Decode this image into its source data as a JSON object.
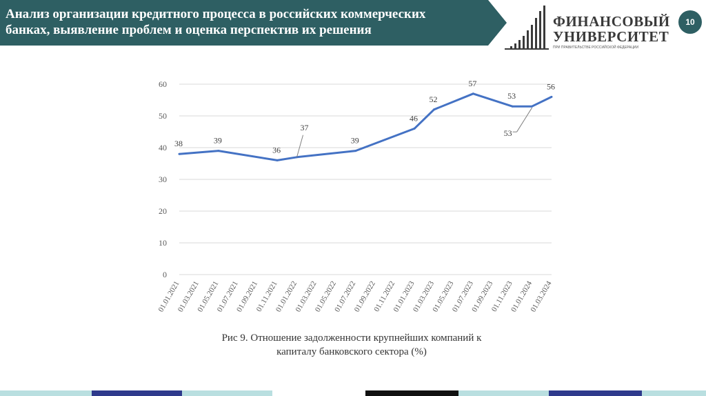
{
  "header": {
    "title_line1": "Анализ организации кредитного процесса в российских коммерческих",
    "title_line2": "банках, выявление проблем и оценка перспектив их решения",
    "page_number": "10"
  },
  "logo": {
    "line1": "ФИНАНСОВЫЙ",
    "line2": "УНИВЕРСИТЕТ",
    "subtitle": "ПРИ ПРАВИТЕЛЬСТВЕ РОССИЙСКОЙ ФЕДЕРАЦИИ"
  },
  "caption": {
    "line1": "Рис 9. Отношение задолженности крупнейших компаний к",
    "line2": "капиталу банковского сектора (%)"
  },
  "colors": {
    "header_band": "#2e5f63",
    "series_line": "#4472c4",
    "gridline": "#d9d9d9",
    "footer": [
      "#b9dfe0",
      "#2e3a8c",
      "#b9dfe0",
      "#ffffff",
      "#111111",
      "#b9dfe0",
      "#2e3a8c",
      "#b9dfe0"
    ]
  },
  "chart_data": {
    "type": "line",
    "title": "",
    "xlabel": "",
    "ylabel": "",
    "ylim": [
      0,
      60
    ],
    "yticks": [
      0,
      10,
      20,
      30,
      40,
      50,
      60
    ],
    "grid": true,
    "legend": "none",
    "categories": [
      "01.01.2021",
      "01.03.2021",
      "01.05.2021",
      "01.07.2021",
      "01.09.2021",
      "01.11.2021",
      "01.01.2022",
      "01.03.2022",
      "01.05.2022",
      "01.07.2022",
      "01.09.2022",
      "01.11.2022",
      "01.01.2023",
      "01.03.2023",
      "01.05.2023",
      "01.07.2023",
      "01.09.2023",
      "01.11.2023",
      "01.01.2024",
      "01.03.2024"
    ],
    "series": [
      {
        "points": [
          {
            "x": "01.01.2021",
            "y": 38
          },
          {
            "x": "01.05.2021",
            "y": 39
          },
          {
            "x": "01.11.2021",
            "y": 36
          },
          {
            "x": "01.01.2022",
            "y": 37
          },
          {
            "x": "01.07.2022",
            "y": 39
          },
          {
            "x": "01.01.2023",
            "y": 46
          },
          {
            "x": "01.03.2023",
            "y": 52
          },
          {
            "x": "01.07.2023",
            "y": 57
          },
          {
            "x": "01.11.2023",
            "y": 53
          },
          {
            "x": "01.01.2024",
            "y": 53
          },
          {
            "x": "01.03.2024",
            "y": 56
          }
        ]
      }
    ],
    "data_labels": [
      {
        "x": "01.01.2021",
        "y": 38,
        "text": "38",
        "pos": "above"
      },
      {
        "x": "01.05.2021",
        "y": 39,
        "text": "39",
        "pos": "above"
      },
      {
        "x": "01.11.2021",
        "y": 36,
        "text": "36",
        "pos": "above"
      },
      {
        "x": "01.01.2022",
        "y": 37,
        "text": "37",
        "pos": "callout-up"
      },
      {
        "x": "01.07.2022",
        "y": 39,
        "text": "39",
        "pos": "above"
      },
      {
        "x": "01.01.2023",
        "y": 46,
        "text": "46",
        "pos": "above"
      },
      {
        "x": "01.03.2023",
        "y": 52,
        "text": "52",
        "pos": "above"
      },
      {
        "x": "01.07.2023",
        "y": 57,
        "text": "57",
        "pos": "above"
      },
      {
        "x": "01.11.2023",
        "y": 53,
        "text": "53",
        "pos": "above"
      },
      {
        "x": "01.01.2024",
        "y": 53,
        "text": "53",
        "pos": "callout-down"
      },
      {
        "x": "01.03.2024",
        "y": 56,
        "text": "56",
        "pos": "above"
      }
    ]
  }
}
